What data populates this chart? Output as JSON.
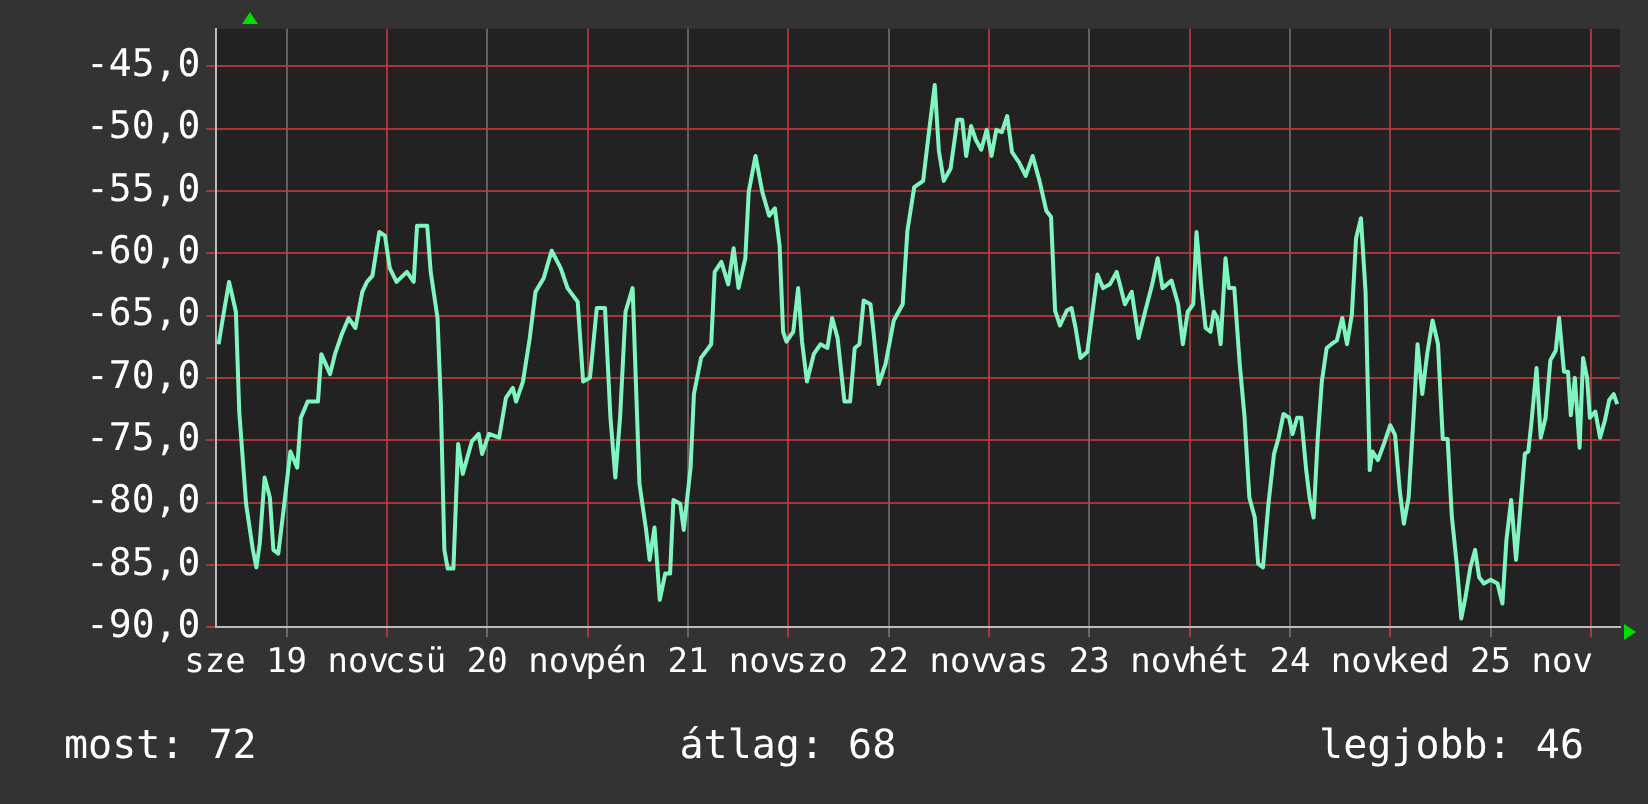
{
  "chart_data": {
    "type": "line",
    "legend": false,
    "grid": true,
    "marker": "none",
    "line_style": "solid",
    "xlim": [
      "--11-19T03:36",
      "--11-26T03:29"
    ],
    "xticks": [
      {
        "value": "--11-19T12:00",
        "label": "sze 19 nov"
      },
      {
        "value": "--11-20T00:00",
        "label": null
      },
      {
        "value": "--11-20T12:00",
        "label": "csü 20 nov"
      },
      {
        "value": "--11-21T00:00",
        "label": null
      },
      {
        "value": "--11-21T12:00",
        "label": "pén 21 nov"
      },
      {
        "value": "--11-22T00:00",
        "label": null
      },
      {
        "value": "--11-22T12:00",
        "label": "szo 22 nov"
      },
      {
        "value": "--11-23T00:00",
        "label": null
      },
      {
        "value": "--11-23T12:00",
        "label": "vas 23 nov"
      },
      {
        "value": "--11-24T00:00",
        "label": null
      },
      {
        "value": "--11-24T12:00",
        "label": "hét 24 nov"
      },
      {
        "value": "--11-25T00:00",
        "label": null
      },
      {
        "value": "--11-25T12:00",
        "label": "ked 25 nov"
      },
      {
        "value": "--11-26T00:00",
        "label": null
      }
    ],
    "ylim": [
      -90,
      -42
    ],
    "yticks": [
      {
        "value": -90,
        "label": "-90,0"
      },
      {
        "value": -85,
        "label": "-85,0"
      },
      {
        "value": -80,
        "label": "-80,0"
      },
      {
        "value": -75,
        "label": "-75,0"
      },
      {
        "value": -70,
        "label": "-70,0"
      },
      {
        "value": -65,
        "label": "-65,0"
      },
      {
        "value": -60,
        "label": "-60,0"
      },
      {
        "value": -55,
        "label": "-55,0"
      },
      {
        "value": -50,
        "label": "-50,0"
      },
      {
        "value": -45,
        "label": "-45,0"
      }
    ],
    "annotations": [
      "most: 72",
      "átlag: 68",
      "legjobb: 46"
    ],
    "series": [
      {
        "color": "#80f5c0",
        "x": [
          "--11-19T03:52",
          "--11-19T04:18",
          "--11-19T05:07",
          "--11-19T05:56",
          "--11-19T06:20",
          "--11-19T07:09",
          "--11-19T07:58",
          "--11-19T08:23",
          "--11-19T08:47",
          "--11-19T09:22",
          "--11-19T10:00",
          "--11-19T10:25",
          "--11-19T11:00",
          "--11-19T11:38",
          "--11-19T12:27",
          "--11-19T13:16",
          "--11-19T13:42",
          "--11-19T14:31",
          "--11-19T15:45",
          "--11-19T16:09",
          "--11-19T17:12",
          "--11-19T17:47",
          "--11-19T18:36",
          "--11-19T19:25",
          "--11-19T20:14",
          "--11-19T21:03",
          "--11-19T21:37",
          "--11-19T22:16",
          "--11-19T23:05",
          "--11-19T23:46",
          "--11-20T00:20",
          "--11-20T01:09",
          "--11-20T02:23",
          "--11-20T03:12",
          "--11-20T03:36",
          "--11-20T04:49",
          "--11-20T05:14",
          "--11-20T06:03",
          "--11-20T06:27",
          "--11-20T06:52",
          "--11-20T07:16",
          "--11-20T07:57",
          "--11-20T08:31",
          "--11-20T09:04",
          "--11-20T10:09",
          "--11-20T10:58",
          "--11-20T11:23",
          "--11-20T12:12",
          "--11-20T13:25",
          "--11-20T14:14",
          "--11-20T15:03",
          "--11-20T15:27",
          "--11-20T16:16",
          "--11-20T17:05",
          "--11-20T17:46",
          "--11-20T18:45",
          "--11-20T19:42",
          "--11-20T20:47",
          "--11-20T21:36",
          "--11-20T22:49",
          "--11-20T23:28",
          "--11-21T00:17",
          "--11-21T01:06",
          "--11-21T02:05",
          "--11-21T02:44",
          "--11-21T03:19",
          "--11-21T03:53",
          "--11-21T04:32",
          "--11-21T05:23",
          "--11-21T06:12",
          "--11-21T07:00",
          "--11-21T07:25",
          "--11-21T08:00",
          "--11-21T08:38",
          "--11-21T09:17",
          "--11-21T09:52",
          "--11-21T10:16",
          "--11-21T11:05",
          "--11-21T11:30",
          "--11-21T12:19",
          "--11-21T12:43",
          "--11-21T13:34",
          "--11-21T14:47",
          "--11-21T15:12",
          "--11-21T16:00",
          "--11-21T16:49",
          "--11-21T17:28",
          "--11-21T18:03",
          "--11-21T18:52",
          "--11-21T19:16",
          "--11-21T20:05",
          "--11-21T20:54",
          "--11-21T21:43",
          "--11-21T22:24",
          "--11-21T22:58",
          "--11-21T23:23",
          "--11-21T23:47",
          "--11-22T00:36",
          "--11-22T01:11",
          "--11-22T01:39",
          "--11-22T02:14",
          "--11-22T03:03",
          "--11-22T03:52",
          "--11-22T04:41",
          "--11-22T05:15",
          "--11-22T05:54",
          "--11-22T06:43",
          "--11-22T07:24",
          "--11-22T07:57",
          "--11-22T08:31",
          "--11-22T09:01",
          "--11-22T09:50",
          "--11-22T10:09",
          "--11-22T10:49",
          "--11-22T11:38",
          "--11-22T12:37",
          "--11-22T13:41",
          "--11-22T14:15",
          "--11-22T15:04",
          "--11-22T16:08",
          "--11-22T16:42",
          "--11-22T17:31",
          "--11-22T18:01",
          "--11-22T18:36",
          "--11-22T19:25",
          "--11-22T20:14",
          "--11-22T20:48",
          "--11-22T21:17",
          "--11-22T21:52",
          "--11-22T22:26",
          "--11-22T23:05",
          "--11-22T23:44",
          "--11-23T00:19",
          "--11-23T00:53",
          "--11-23T01:32",
          "--11-23T02:11",
          "--11-23T02:46",
          "--11-23T03:35",
          "--11-23T04:24",
          "--11-23T05:14",
          "--11-23T06:03",
          "--11-23T06:52",
          "--11-23T07:26",
          "--11-23T07:55",
          "--11-23T08:30",
          "--11-23T09:19",
          "--11-23T09:53",
          "--11-23T10:22",
          "--11-23T10:57",
          "--11-23T11:46",
          "--11-23T12:20",
          "--11-23T12:59",
          "--11-23T13:39",
          "--11-23T14:28",
          "--11-23T15:17",
          "--11-23T16:16",
          "--11-23T17:05",
          "--11-23T17:54",
          "--11-23T18:43",
          "--11-23T19:32",
          "--11-23T20:11",
          "--11-23T20:46",
          "--11-23T21:50",
          "--11-23T22:38",
          "--11-23T23:12",
          "--11-23T23:47",
          "--11-24T00:26",
          "--11-24T00:50",
          "--11-24T01:25",
          "--11-24T01:55",
          "--11-24T02:30",
          "--11-24T02:54",
          "--11-24T03:19",
          "--11-24T03:43",
          "--11-24T04:18",
          "--11-24T04:42",
          "--11-24T05:21",
          "--11-24T06:00",
          "--11-24T06:35",
          "--11-24T07:09",
          "--11-24T07:48",
          "--11-24T08:12",
          "--11-24T08:47",
          "--11-24T09:26",
          "--11-24T10:06",
          "--11-24T10:39",
          "--11-24T11:14",
          "--11-24T11:54",
          "--11-24T12:19",
          "--11-24T12:52",
          "--11-24T13:22",
          "--11-24T13:57",
          "--11-24T14:21",
          "--11-24T14:50",
          "--11-24T15:20",
          "--11-24T15:49",
          "--11-24T16:24",
          "--11-24T16:58",
          "--11-24T17:37",
          "--11-24T18:16",
          "--11-24T18:50",
          "--11-24T19:25",
          "--11-24T19:55",
          "--11-24T20:30",
          "--11-24T21:03",
          "--11-24T21:33",
          "--11-24T21:52",
          "--11-24T22:32",
          "--11-24T23:21",
          "--11-25T00:00",
          "--11-25T00:35",
          "--11-25T01:09",
          "--11-25T01:38",
          "--11-25T02:12",
          "--11-25T02:47",
          "--11-25T03:16",
          "--11-25T03:50",
          "--11-25T04:25",
          "--11-25T05:04",
          "--11-25T05:43",
          "--11-25T06:17",
          "--11-25T06:52",
          "--11-25T07:22",
          "--11-25T07:57",
          "--11-25T08:30",
          "--11-25T09:00",
          "--11-25T09:35",
          "--11-25T10:09",
          "--11-25T10:38",
          "--11-25T11:12",
          "--11-25T12:01",
          "--11-25T12:50",
          "--11-25T13:25",
          "--11-25T13:54",
          "--11-25T14:28",
          "--11-25T15:03",
          "--11-25T15:33",
          "--11-25T16:06",
          "--11-25T16:31",
          "--11-25T16:55",
          "--11-25T17:30",
          "--11-25T18:00",
          "--11-25T18:35",
          "--11-25T19:09",
          "--11-25T19:48",
          "--11-25T20:12",
          "--11-25T20:47",
          "--11-25T21:16",
          "--11-25T21:36",
          "--11-25T22:05",
          "--11-25T22:39",
          "--11-25T23:04",
          "--11-25T23:33",
          "--11-25T23:53",
          "--11-26T00:32",
          "--11-26T01:06",
          "--11-26T01:41",
          "--11-26T02:11",
          "--11-26T02:44",
          "--11-26T03:09"
        ],
        "values": [
          -67.3,
          -65.5,
          -62.3,
          -64.7,
          -72.7,
          -80.1,
          -83.8,
          -85.2,
          -83.3,
          -78.0,
          -79.6,
          -83.8,
          -84.1,
          -80.6,
          -75.9,
          -77.2,
          -73.2,
          -71.9,
          -71.9,
          -68.1,
          -69.7,
          -68.1,
          -66.5,
          -65.2,
          -66.0,
          -63.1,
          -62.3,
          -61.8,
          -58.3,
          -58.6,
          -61.2,
          -62.3,
          -61.5,
          -62.3,
          -57.8,
          -57.8,
          -61.5,
          -65.2,
          -72.1,
          -83.8,
          -85.3,
          -85.3,
          -75.3,
          -77.7,
          -75.1,
          -74.5,
          -76.1,
          -74.5,
          -74.8,
          -71.6,
          -70.8,
          -71.9,
          -70.3,
          -66.8,
          -63.1,
          -62.0,
          -59.8,
          -61.2,
          -62.8,
          -63.9,
          -70.3,
          -70.0,
          -64.4,
          -64.4,
          -73.2,
          -78.0,
          -73.2,
          -64.7,
          -62.8,
          -78.5,
          -82.2,
          -84.6,
          -82.0,
          -87.8,
          -85.7,
          -85.7,
          -79.8,
          -80.1,
          -82.2,
          -77.2,
          -71.3,
          -68.4,
          -67.3,
          -61.5,
          -60.7,
          -62.5,
          -59.6,
          -62.8,
          -60.4,
          -55.1,
          -52.2,
          -55.1,
          -57.0,
          -56.4,
          -59.4,
          -66.3,
          -67.1,
          -66.3,
          -62.8,
          -67.1,
          -70.3,
          -68.1,
          -67.3,
          -67.6,
          -65.2,
          -66.8,
          -71.9,
          -71.9,
          -67.6,
          -67.3,
          -63.8,
          -64.1,
          -66.0,
          -70.5,
          -68.9,
          -65.4,
          -64.1,
          -58.2,
          -54.7,
          -54.2,
          -51.0,
          -46.5,
          -51.8,
          -54.2,
          -53.2,
          -49.3,
          -49.3,
          -52.2,
          -49.8,
          -50.9,
          -51.7,
          -50.1,
          -52.2,
          -50.1,
          -50.3,
          -49.0,
          -51.9,
          -52.7,
          -53.8,
          -52.2,
          -54.2,
          -56.6,
          -57.1,
          -64.6,
          -65.8,
          -64.6,
          -64.4,
          -66.0,
          -68.4,
          -67.9,
          -65.0,
          -61.7,
          -62.8,
          -62.5,
          -61.5,
          -64.1,
          -63.1,
          -66.8,
          -64.6,
          -62.5,
          -60.4,
          -62.8,
          -62.2,
          -64.1,
          -67.3,
          -64.7,
          -64.1,
          -58.3,
          -62.8,
          -66.0,
          -66.3,
          -64.7,
          -65.2,
          -67.3,
          -60.4,
          -62.8,
          -62.8,
          -68.9,
          -73.2,
          -79.6,
          -81.2,
          -84.9,
          -85.2,
          -80.1,
          -76.1,
          -74.8,
          -72.9,
          -73.2,
          -74.5,
          -73.2,
          -73.2,
          -77.4,
          -79.6,
          -81.2,
          -74.8,
          -70.3,
          -67.6,
          -67.3,
          -67.0,
          -65.2,
          -67.3,
          -64.9,
          -58.8,
          -57.2,
          -63.1,
          -77.4,
          -75.9,
          -76.6,
          -75.1,
          -73.8,
          -74.6,
          -79.1,
          -81.7,
          -79.6,
          -73.2,
          -67.3,
          -71.3,
          -68.1,
          -65.4,
          -67.3,
          -74.9,
          -74.9,
          -81.1,
          -84.9,
          -89.3,
          -87.6,
          -85.2,
          -83.8,
          -86.0,
          -86.5,
          -86.2,
          -86.5,
          -88.1,
          -83.0,
          -79.8,
          -84.6,
          -80.6,
          -76.1,
          -75.9,
          -73.4,
          -69.2,
          -74.8,
          -73.2,
          -68.6,
          -67.8,
          -65.2,
          -69.5,
          -69.5,
          -73.0,
          -70.0,
          -75.6,
          -68.4,
          -70.0,
          -73.2,
          -72.7,
          -74.8,
          -73.4,
          -71.8,
          -71.3,
          -72.1
        ]
      }
    ]
  }
}
